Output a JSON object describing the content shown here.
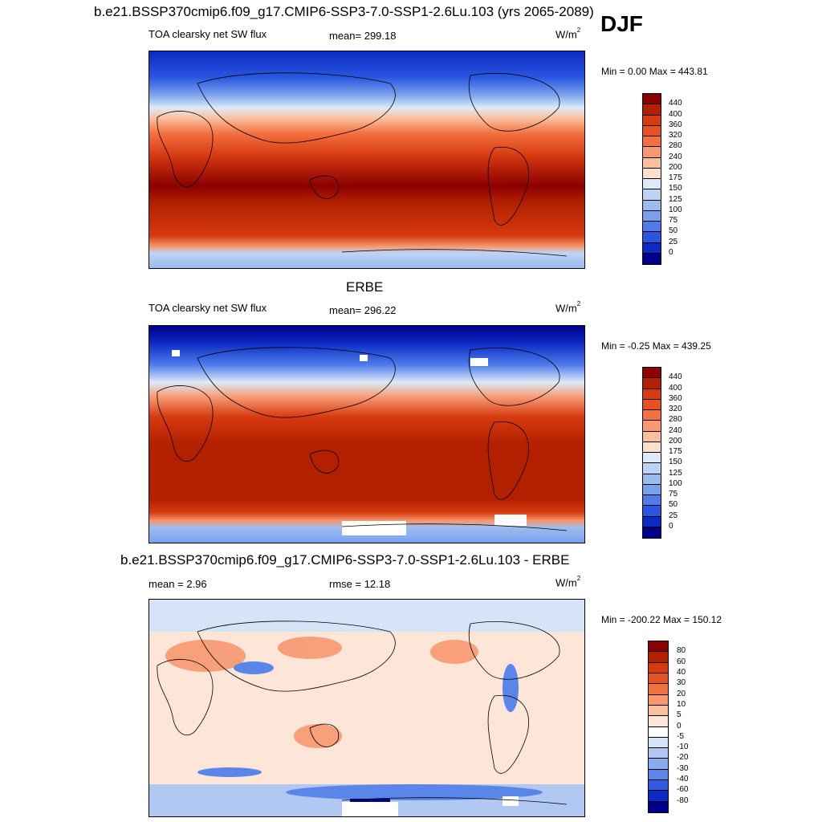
{
  "figure": {
    "title": "b.e21.BSSP370cmip6.f09_g17.CMIP6-SSP3-7.0-SSP1-2.6Lu.103 (yrs 2065-2089)",
    "season": "DJF"
  },
  "panels": [
    {
      "title": "",
      "left_label": "TOA clearsky net SW flux",
      "center_label": "mean= 299.18",
      "units": "W/m",
      "units_sup": "2",
      "minmax": "Min =   0.00 Max = 443.81"
    },
    {
      "title": "ERBE",
      "left_label": "TOA clearsky net SW flux",
      "center_label": "mean= 296.22",
      "units": "W/m",
      "units_sup": "2",
      "minmax": "Min =  -0.25 Max = 439.25"
    },
    {
      "title": "b.e21.BSSP370cmip6.f09_g17.CMIP6-SSP3-7.0-SSP1-2.6Lu.103 - ERBE",
      "left_label": "mean =   2.96",
      "center_label": "rmse =  12.18",
      "units": "W/m",
      "units_sup": "2",
      "minmax": "Min = -200.22 Max = 150.12"
    }
  ],
  "colorbars": {
    "flux": {
      "levels": [
        "440",
        "400",
        "360",
        "320",
        "280",
        "240",
        "200",
        "175",
        "150",
        "125",
        "100",
        "75",
        "50",
        "25",
        "0"
      ],
      "colors": [
        "#8b0000",
        "#b22000",
        "#d63a10",
        "#e85020",
        "#f37040",
        "#f79870",
        "#fbbf9e",
        "#fde0cc",
        "#deeaf8",
        "#bcd4f4",
        "#9cbcf0",
        "#7aa2ec",
        "#4f7cea",
        "#2a56e0",
        "#0c2bc4",
        "#00008b"
      ]
    },
    "diff": {
      "levels": [
        "80",
        "60",
        "40",
        "30",
        "20",
        "10",
        "5",
        "0",
        "-5",
        "-10",
        "-20",
        "-30",
        "-40",
        "-60",
        "-80"
      ],
      "colors": [
        "#8b0000",
        "#b22000",
        "#d63a10",
        "#e85020",
        "#f37040",
        "#f79870",
        "#fbbf9e",
        "#fde6d8",
        "#ffffff",
        "#d6e4f8",
        "#b0c8f2",
        "#88acee",
        "#5a86ea",
        "#2f5ce0",
        "#0c2bc4",
        "#00008b"
      ]
    }
  }
}
